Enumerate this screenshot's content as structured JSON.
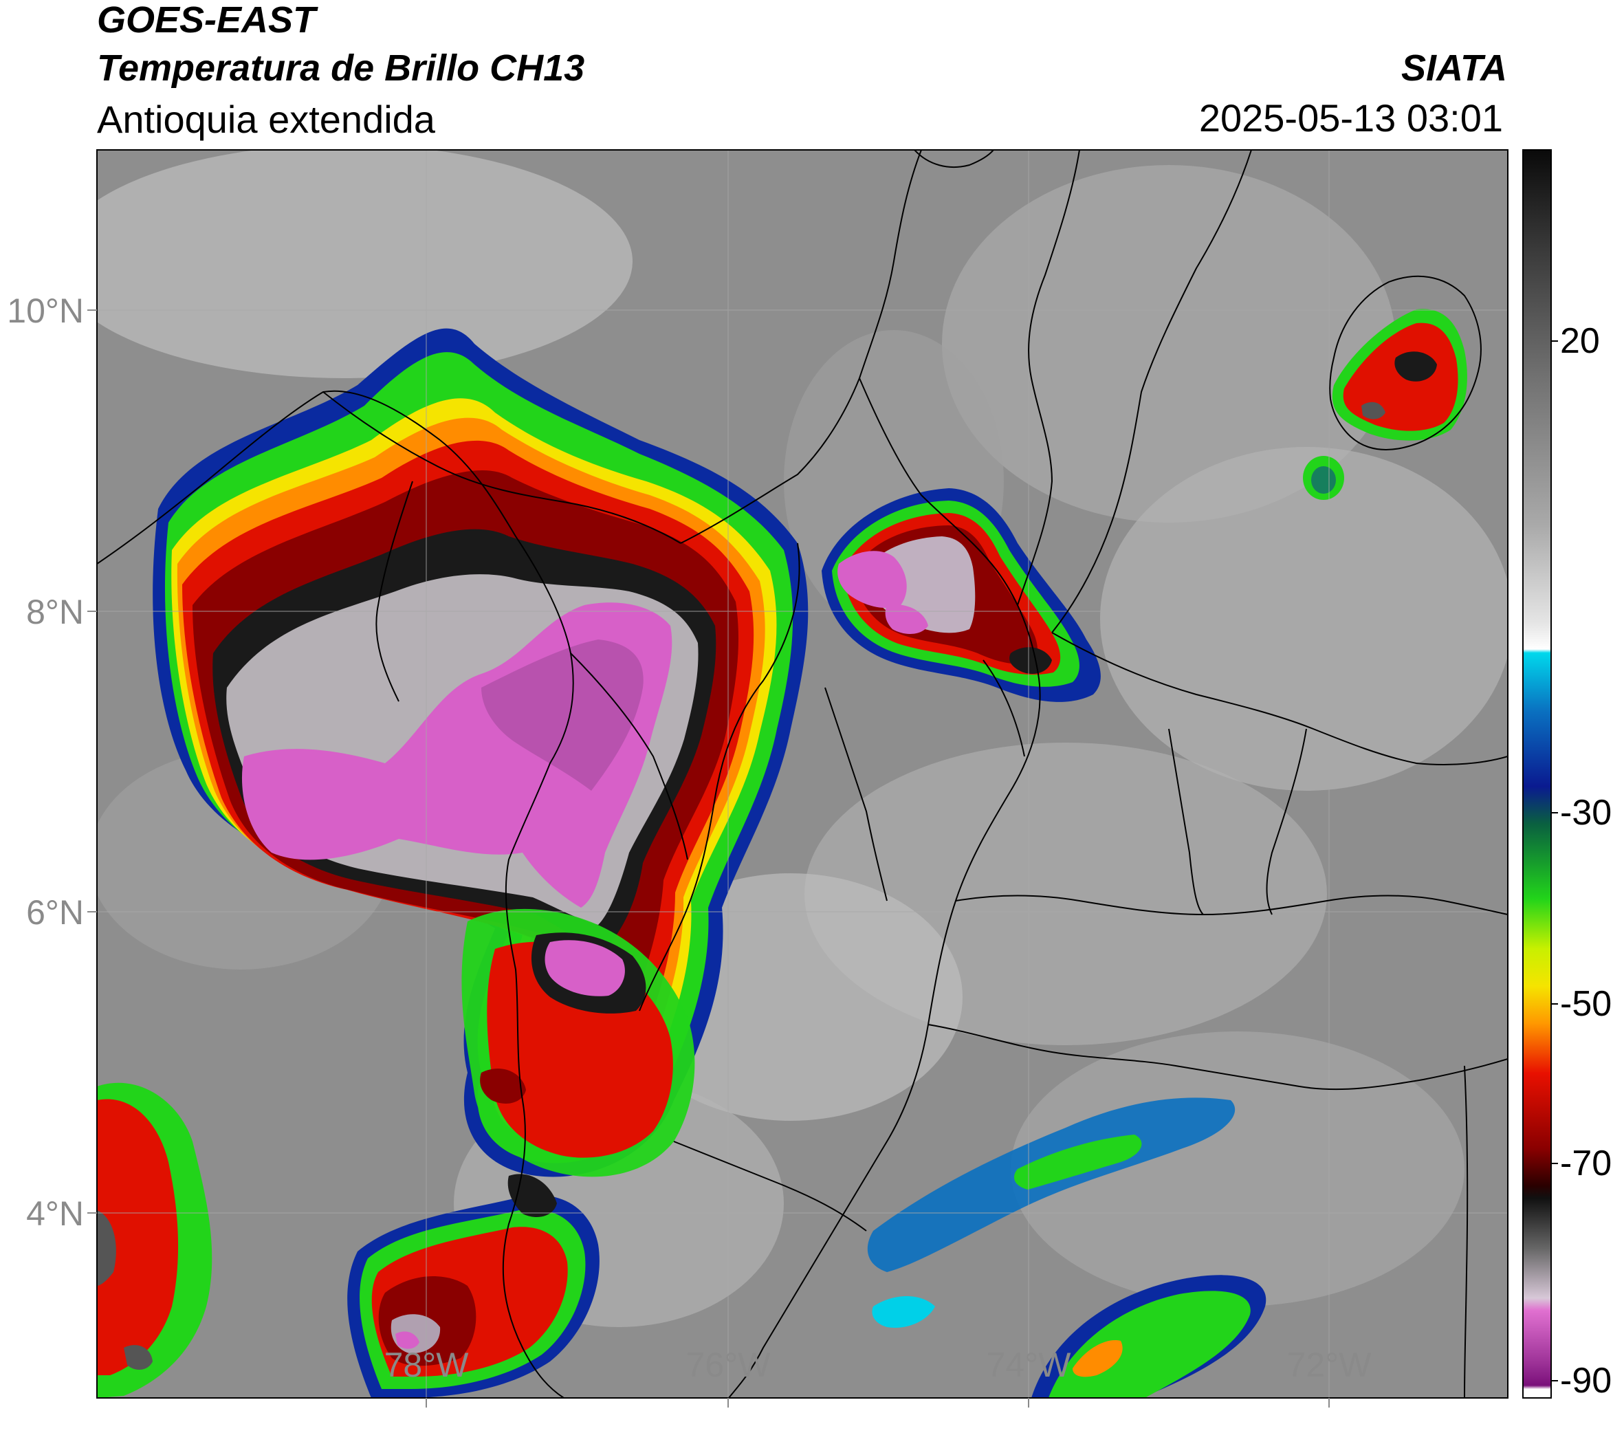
{
  "header": {
    "satellite": "GOES-EAST",
    "product": "Temperatura de Brillo CH13",
    "region": "Antioquia extendida",
    "organization": "SIATA",
    "timestamp": "2025-05-13 03:01"
  },
  "map": {
    "lat_ticks": [
      "10°N",
      "8°N",
      "6°N",
      "4°N"
    ],
    "lon_ticks": [
      "78°W",
      "76°W",
      "74°W",
      "72°W"
    ]
  },
  "colorbar": {
    "ticks": [
      "20",
      "-30",
      "-50",
      "-70",
      "-90"
    ],
    "range": [
      -90,
      30
    ]
  },
  "colors": {
    "cold_top": "#d760c8",
    "very_cold": "#a0369a",
    "deep_red": "#8a0000",
    "red": "#e01000",
    "orange": "#ff8c00",
    "yellow": "#f5e400",
    "green": "#22d41a",
    "blue": "#0a2aa0",
    "cyan": "#00d0e8",
    "land_gray": "#8e8e8e"
  }
}
